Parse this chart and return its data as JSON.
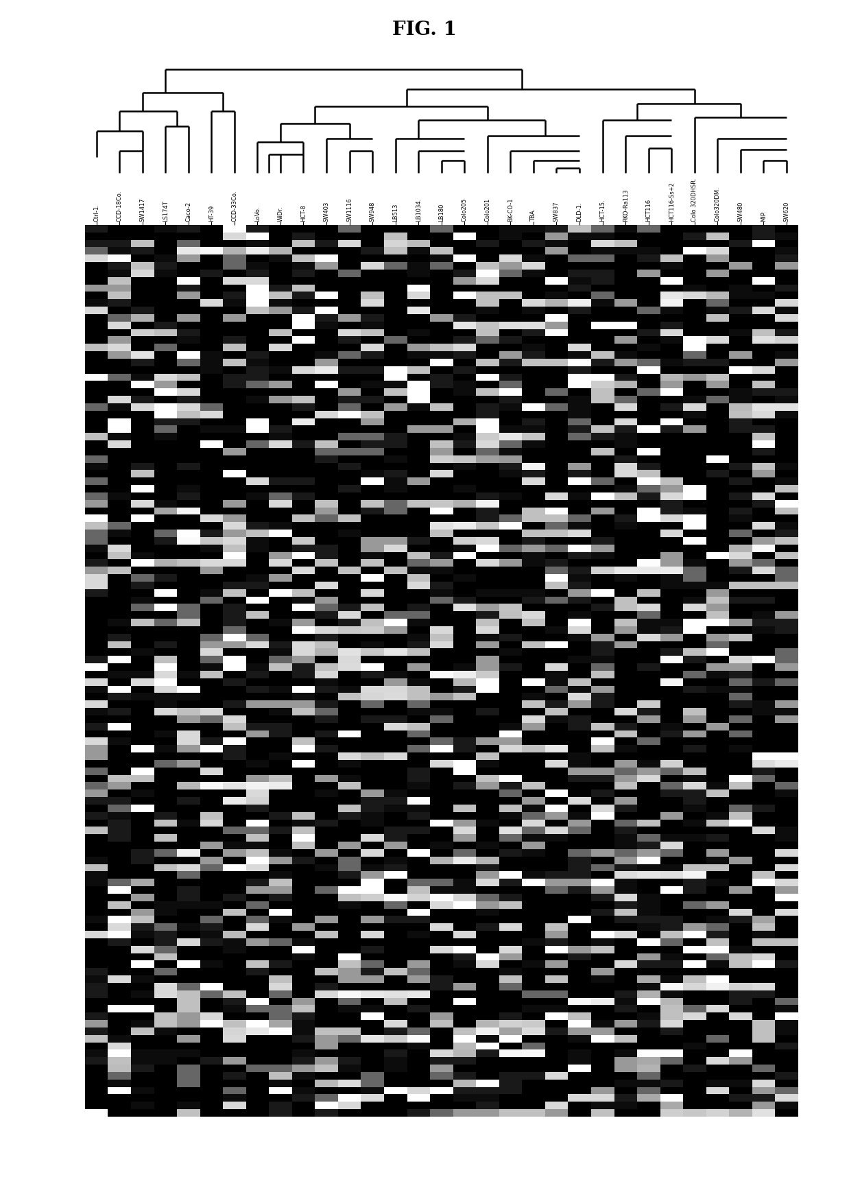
{
  "title": "FIG. 1",
  "col_labels": [
    "Ctrl-1.",
    "CCD-18Co.",
    "SW1417",
    "LS174T",
    "Caco-2",
    "HT-39",
    "CCD-33Co.",
    "LoVo.",
    "WiDr.",
    "HCT-8",
    "SW403",
    "SW1116",
    "SW948",
    "LB513",
    "LB1034.",
    "LB180",
    "Colo205",
    "Colo201",
    "BK-CO-1",
    "TBA.",
    "SW837",
    "DLD-1.",
    "HCT-15.",
    "RKO-Ra113",
    "HCT116",
    "HCT116-Ss+2",
    "Colo 320DHSR.",
    "Colo320DM.",
    "SW480",
    "MIP.",
    "SW620"
  ],
  "n_cols": 31,
  "n_rows": 120,
  "background_color": "#ffffff",
  "fig_width": 12.38,
  "fig_height": 17.33,
  "title_fontsize": 20,
  "label_fontsize": 6.0,
  "dark_prob": 0.72,
  "mid_prob": 0.1,
  "bright_prob": 0.18
}
